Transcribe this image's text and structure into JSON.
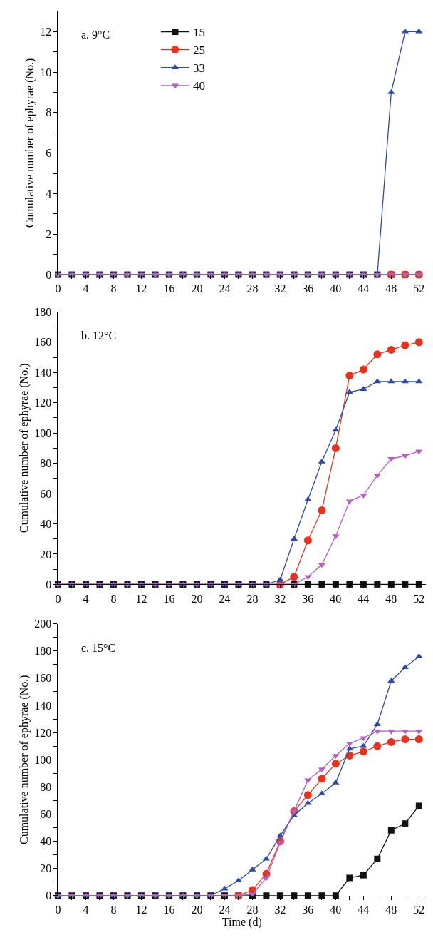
{
  "chart_data": [
    {
      "type": "line",
      "title": "a. 9°C",
      "ylabel": "Cumulative number of ephyrae (No.)",
      "x": [
        0,
        2,
        4,
        6,
        8,
        10,
        12,
        14,
        16,
        18,
        20,
        22,
        24,
        26,
        28,
        30,
        32,
        34,
        36,
        38,
        40,
        42,
        44,
        46,
        48,
        50,
        52
      ],
      "series": [
        {
          "name": "15",
          "color": "#111111",
          "marker": "square",
          "values": [
            0,
            0,
            0,
            0,
            0,
            0,
            0,
            0,
            0,
            0,
            0,
            0,
            0,
            0,
            0,
            0,
            0,
            0,
            0,
            0,
            0,
            0,
            0,
            0,
            0,
            0,
            0
          ]
        },
        {
          "name": "25",
          "color": "#e8321e",
          "marker": "circle",
          "values": [
            null,
            null,
            null,
            null,
            null,
            null,
            null,
            null,
            null,
            null,
            null,
            null,
            null,
            null,
            null,
            null,
            null,
            null,
            null,
            null,
            null,
            null,
            null,
            null,
            0,
            0,
            0
          ]
        },
        {
          "name": "33",
          "color": "#2b4ba8",
          "marker": "triangle",
          "values": [
            0,
            0,
            0,
            0,
            0,
            0,
            0,
            0,
            0,
            0,
            0,
            0,
            0,
            0,
            0,
            0,
            0,
            0,
            0,
            0,
            0,
            0,
            0,
            0,
            9,
            12,
            12
          ]
        },
        {
          "name": "40",
          "color": "#b55ec4",
          "marker": "triangle-down",
          "values": [
            0,
            0,
            0,
            0,
            0,
            0,
            0,
            0,
            0,
            0,
            0,
            0,
            0,
            0,
            0,
            0,
            0,
            0,
            0,
            0,
            0,
            0,
            0,
            0,
            0,
            0,
            0
          ]
        }
      ],
      "xlim": [
        0,
        53
      ],
      "ylim": [
        0,
        13
      ],
      "xticks": [
        0,
        {
          "value": 2,
          "label": null
        },
        4,
        {
          "value": 6,
          "label": null
        },
        8,
        {
          "value": 10,
          "label": null
        },
        12,
        {
          "value": 14,
          "label": null
        },
        16,
        {
          "value": 18,
          "label": null
        },
        20,
        {
          "value": 22,
          "label": null
        },
        24,
        {
          "value": 26,
          "label": null
        },
        28,
        {
          "value": 30,
          "label": null
        },
        32,
        {
          "value": 34,
          "label": null
        },
        36,
        {
          "value": 38,
          "label": null
        },
        40,
        {
          "value": 42,
          "label": null
        },
        44,
        {
          "value": 46,
          "label": null
        },
        48,
        {
          "value": 50,
          "label": null
        },
        52
      ],
      "yticks": [
        0,
        {
          "value": 1,
          "label": null
        },
        2,
        {
          "value": 3,
          "label": null
        },
        4,
        {
          "value": 5,
          "label": null
        },
        6,
        {
          "value": 7,
          "label": null
        },
        8,
        {
          "value": 9,
          "label": null
        },
        10,
        {
          "value": 11,
          "label": null
        },
        12
      ],
      "legend": "top left",
      "line_style": "solid"
    },
    {
      "type": "line",
      "title": "b. 12°C",
      "ylabel": "Cumulative number of ephyrae (No.)",
      "x": [
        0,
        2,
        4,
        6,
        8,
        10,
        12,
        14,
        16,
        18,
        20,
        22,
        24,
        26,
        28,
        30,
        32,
        34,
        36,
        38,
        40,
        42,
        44,
        46,
        48,
        50,
        52
      ],
      "series": [
        {
          "color": "#111111",
          "marker": "square",
          "values": [
            0,
            0,
            0,
            0,
            0,
            0,
            0,
            0,
            0,
            0,
            0,
            0,
            0,
            0,
            0,
            0,
            0,
            0,
            0,
            0,
            0,
            0,
            0,
            0,
            0,
            0,
            0
          ]
        },
        {
          "color": "#e8321e",
          "marker": "circle",
          "values": [
            null,
            null,
            null,
            null,
            null,
            null,
            null,
            null,
            null,
            null,
            null,
            null,
            null,
            null,
            null,
            null,
            0,
            5,
            29,
            49,
            90,
            138,
            142,
            152,
            155,
            158,
            160
          ]
        },
        {
          "color": "#2b4ba8",
          "marker": "triangle",
          "values": [
            0,
            0,
            0,
            0,
            0,
            0,
            0,
            0,
            0,
            0,
            0,
            0,
            0,
            0,
            0,
            0,
            3,
            30,
            56,
            81,
            102,
            127,
            129,
            134,
            134,
            134,
            134
          ]
        },
        {
          "color": "#b55ec4",
          "marker": "triangle-down",
          "values": [
            0,
            0,
            0,
            0,
            0,
            0,
            0,
            0,
            0,
            0,
            0,
            0,
            0,
            0,
            0,
            0,
            0,
            0,
            5,
            13,
            32,
            55,
            59,
            72,
            83,
            85,
            88
          ]
        }
      ],
      "xlim": [
        0,
        53
      ],
      "ylim": [
        0,
        180
      ],
      "xticks": [
        0,
        {
          "value": 2,
          "label": null
        },
        4,
        {
          "value": 6,
          "label": null
        },
        8,
        {
          "value": 10,
          "label": null
        },
        12,
        {
          "value": 14,
          "label": null
        },
        16,
        {
          "value": 18,
          "label": null
        },
        20,
        {
          "value": 22,
          "label": null
        },
        24,
        {
          "value": 26,
          "label": null
        },
        28,
        {
          "value": 30,
          "label": null
        },
        32,
        {
          "value": 34,
          "label": null
        },
        36,
        {
          "value": 38,
          "label": null
        },
        40,
        {
          "value": 42,
          "label": null
        },
        44,
        {
          "value": 46,
          "label": null
        },
        48,
        {
          "value": 50,
          "label": null
        },
        52
      ],
      "yticks": [
        0,
        {
          "value": 10,
          "label": null
        },
        20,
        {
          "value": 30,
          "label": null
        },
        40,
        {
          "value": 50,
          "label": null
        },
        60,
        {
          "value": 70,
          "label": null
        },
        80,
        {
          "value": 90,
          "label": null
        },
        100,
        {
          "value": 110,
          "label": null
        },
        120,
        {
          "value": 130,
          "label": null
        },
        140,
        {
          "value": 150,
          "label": null
        },
        160,
        {
          "value": 170,
          "label": null
        },
        180
      ],
      "line_style": "solid"
    },
    {
      "type": "line",
      "title": "c. 15°C",
      "xlabel": "Time (d)",
      "ylabel": "Cumulative number of ephyrae (No.)",
      "x": [
        0,
        2,
        4,
        6,
        8,
        10,
        12,
        14,
        16,
        18,
        20,
        22,
        24,
        26,
        28,
        30,
        32,
        34,
        36,
        38,
        40,
        42,
        44,
        46,
        48,
        50,
        52
      ],
      "series": [
        {
          "color": "#111111",
          "marker": "square",
          "values": [
            0,
            0,
            0,
            0,
            0,
            0,
            0,
            0,
            0,
            0,
            0,
            0,
            0,
            0,
            0,
            0,
            0,
            0,
            0,
            0,
            0,
            13,
            15,
            27,
            48,
            53,
            66
          ]
        },
        {
          "color": "#e8321e",
          "marker": "circle",
          "values": [
            null,
            null,
            null,
            null,
            null,
            null,
            null,
            null,
            null,
            null,
            null,
            null,
            null,
            0,
            4,
            16,
            40,
            62,
            74,
            86,
            97,
            103,
            106,
            110,
            113,
            115,
            115
          ]
        },
        {
          "color": "#2b4ba8",
          "marker": "triangle",
          "values": [
            0,
            0,
            0,
            0,
            0,
            0,
            0,
            0,
            0,
            0,
            0,
            0,
            5,
            11,
            19,
            27,
            44,
            59,
            68,
            75,
            83,
            108,
            110,
            126,
            158,
            168,
            176
          ]
        },
        {
          "color": "#b55ec4",
          "marker": "triangle-down",
          "values": [
            0,
            0,
            0,
            0,
            0,
            0,
            0,
            0,
            0,
            0,
            0,
            0,
            0,
            0,
            1,
            13,
            39,
            62,
            85,
            93,
            103,
            112,
            116,
            121,
            121,
            121,
            121
          ]
        }
      ],
      "xlim": [
        0,
        53
      ],
      "ylim": [
        0,
        200
      ],
      "xticks": [
        0,
        {
          "value": 2,
          "label": null
        },
        4,
        {
          "value": 6,
          "label": null
        },
        8,
        {
          "value": 10,
          "label": null
        },
        12,
        {
          "value": 14,
          "label": null
        },
        16,
        {
          "value": 18,
          "label": null
        },
        20,
        {
          "value": 22,
          "label": null
        },
        24,
        {
          "value": 26,
          "label": null
        },
        28,
        {
          "value": 30,
          "label": null
        },
        32,
        {
          "value": 34,
          "label": null
        },
        36,
        {
          "value": 38,
          "label": null
        },
        40,
        {
          "value": 42,
          "label": null
        },
        44,
        {
          "value": 46,
          "label": null
        },
        48,
        {
          "value": 50,
          "label": null
        },
        52
      ],
      "yticks": [
        0,
        {
          "value": 10,
          "label": null
        },
        20,
        {
          "value": 30,
          "label": null
        },
        40,
        {
          "value": 50,
          "label": null
        },
        60,
        {
          "value": 70,
          "label": null
        },
        80,
        {
          "value": 90,
          "label": null
        },
        100,
        {
          "value": 110,
          "label": null
        },
        120,
        {
          "value": 130,
          "label": null
        },
        140,
        {
          "value": 150,
          "label": null
        },
        160,
        {
          "value": 170,
          "label": null
        },
        180,
        {
          "value": 190,
          "label": null
        },
        200
      ],
      "line_style": "solid"
    }
  ]
}
